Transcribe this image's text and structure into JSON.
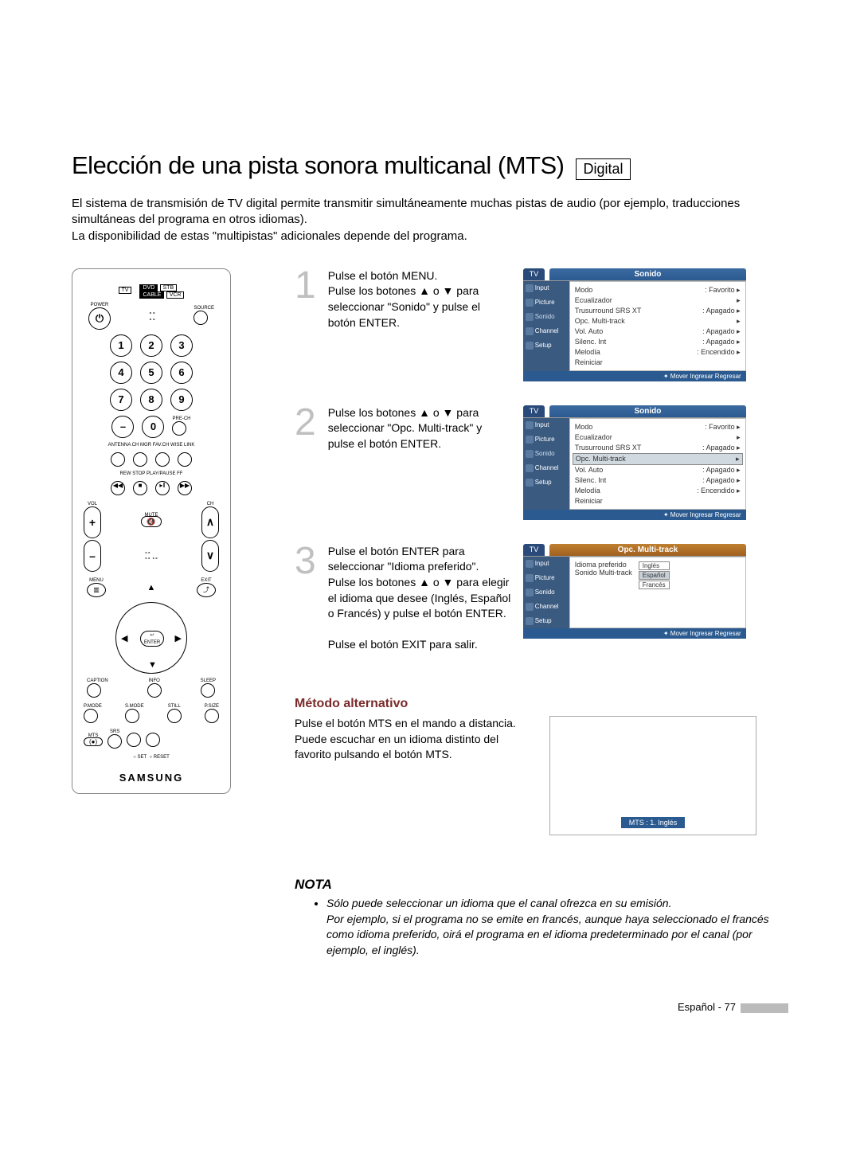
{
  "title": "Elección de una pista sonora multicanal (MTS)",
  "digital_badge": "Digital",
  "intro": "El sistema de transmisión de TV digital permite transmitir simultáneamente muchas pistas de audio (por ejemplo, traducciones simultáneas del programa en otros idiomas).\nLa disponibilidad de estas \"multipistas\" adicionales depende del programa.",
  "remote": {
    "modes": [
      "TV",
      "DVD",
      "STB",
      "CABLE",
      "VCR"
    ],
    "power": "POWER",
    "source": "SOURCE",
    "digits": [
      "1",
      "2",
      "3",
      "4",
      "5",
      "6",
      "7",
      "8",
      "9",
      "0"
    ],
    "prech": "PRE-CH",
    "row_labels": "ANTENNA  CH MGR  FAV.CH  WISE LINK",
    "transport": "REW   STOP   PLAY/PAUSE   FF",
    "vol": "VOL",
    "ch": "CH",
    "mute": "MUTE",
    "menu": "MENU",
    "exit": "EXIT",
    "enter": "ENTER",
    "caption": "CAPTION",
    "info": "INFO",
    "sleep": "SLEEP",
    "pmode": "P.MODE",
    "smode": "S.MODE",
    "still": "STILL",
    "psize": "P.SIZE",
    "mts": "MTS",
    "srs": "SRS",
    "set": "SET",
    "reset": "RESET",
    "brand": "SAMSUNG"
  },
  "steps": [
    {
      "num": "1",
      "text": "Pulse el botón MENU.\nPulse los botones ▲ o ▼ para seleccionar \"Sonido\" y pulse el botón ENTER."
    },
    {
      "num": "2",
      "text": "Pulse los botones ▲ o ▼ para seleccionar \"Opc. Multi-track\" y pulse el botón ENTER."
    },
    {
      "num": "3",
      "text": "Pulse el botón ENTER para seleccionar \"Idioma preferido\".\nPulse los botones ▲ o ▼ para elegir el idioma que desee (Inglés, Español o Francés) y pulse el botón ENTER.\n\nPulse el botón EXIT para salir."
    }
  ],
  "osd_common": {
    "tv_tab": "TV",
    "side": [
      "Input",
      "Picture",
      "Sonido",
      "Channel",
      "Setup"
    ],
    "footer": "Mover  Ingresar  Regresar"
  },
  "osd1": {
    "title": "Sonido",
    "lines": [
      {
        "l": "Modo",
        "r": ": Favorito",
        "a": "▸"
      },
      {
        "l": "Ecualizador",
        "r": "",
        "a": "▸"
      },
      {
        "l": "Trusurround SRS XT",
        "r": ": Apagado",
        "a": "▸"
      },
      {
        "l": "Opc. Multi-track",
        "r": "",
        "a": "▸"
      },
      {
        "l": "Vol. Auto",
        "r": ": Apagado",
        "a": "▸"
      },
      {
        "l": "Silenc. Int",
        "r": ": Apagado",
        "a": "▸"
      },
      {
        "l": "Melodía",
        "r": ": Encendido",
        "a": "▸"
      },
      {
        "l": "Reiniciar",
        "r": "",
        "a": ""
      }
    ]
  },
  "osd2": {
    "title": "Sonido",
    "highlight_idx": 3,
    "lines": [
      {
        "l": "Modo",
        "r": ": Favorito",
        "a": "▸"
      },
      {
        "l": "Ecualizador",
        "r": "",
        "a": "▸"
      },
      {
        "l": "Trusurround SRS XT",
        "r": ": Apagado",
        "a": "▸"
      },
      {
        "l": "Opc. Multi-track",
        "r": "",
        "a": "▸"
      },
      {
        "l": "Vol. Auto",
        "r": ": Apagado",
        "a": "▸"
      },
      {
        "l": "Silenc. Int",
        "r": ": Apagado",
        "a": "▸"
      },
      {
        "l": "Melodía",
        "r": ": Encendido",
        "a": "▸"
      },
      {
        "l": "Reiniciar",
        "r": "",
        "a": ""
      }
    ]
  },
  "osd3": {
    "title": "Opc. Multi-track",
    "label1": "Idioma preferido",
    "label2": "Sonido Multi-track",
    "langs": [
      "Inglés",
      "Español",
      "Francés"
    ],
    "sel_idx": 1
  },
  "alt": {
    "heading": "Método alternativo",
    "text": "Pulse el botón MTS en el mando a distancia.\nPuede escuchar en un idioma distinto del favorito pulsando el botón MTS.",
    "mts_badge": "MTS : 1. Inglés"
  },
  "nota": {
    "heading": "NOTA",
    "items": [
      "Sólo puede seleccionar un idioma que el canal ofrezca en su emisión.\nPor ejemplo, si el programa no se emite en francés, aunque haya seleccionado el francés como idioma preferido, oirá el programa en el idioma predeterminado por el canal (por ejemplo, el inglés)."
    ]
  },
  "footer": "Español - 77"
}
